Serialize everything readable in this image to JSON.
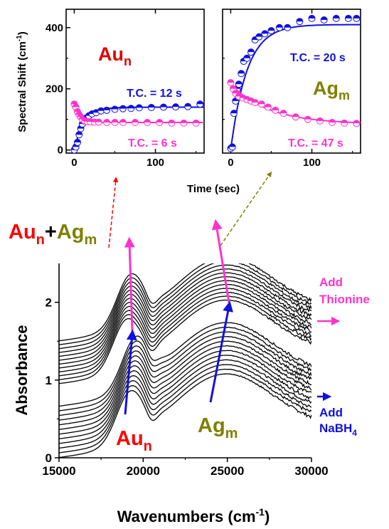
{
  "colors": {
    "gold": "#d8000f",
    "silver": "#808000",
    "blue": "#1010e0",
    "magenta": "#ff33cc",
    "curve": "#000000"
  },
  "chart_data": [
    {
      "type": "scatter",
      "panel": "inset-left",
      "ylabel": "Spectral Shift (cm-1)",
      "xlim": [
        -10,
        160
      ],
      "ylim": [
        -10,
        460
      ],
      "xticks": [
        "0",
        "100"
      ],
      "yticks": [
        "0",
        "200",
        "400"
      ],
      "series": [
        {
          "name": "Aun",
          "color": "blue",
          "label": "T.C. = 12 s",
          "tau": 12,
          "plateau": 140,
          "x": [
            0,
            2,
            4,
            6,
            8,
            10,
            12,
            15,
            18,
            22,
            27,
            33,
            40,
            50,
            60,
            70,
            80,
            95,
            110,
            125,
            140,
            155
          ],
          "y": [
            0,
            10,
            25,
            50,
            70,
            85,
            95,
            105,
            112,
            118,
            122,
            128,
            130,
            133,
            135,
            136,
            138,
            139,
            140,
            141,
            142,
            150
          ]
        },
        {
          "name": "Aun",
          "color": "magenta",
          "label": "T.C. = 6 s",
          "tau": 6,
          "start": 150,
          "plateau": 90,
          "x": [
            0,
            2,
            4,
            6,
            8,
            10,
            13,
            16,
            20,
            25,
            30,
            40,
            50,
            60,
            75,
            90,
            105,
            120,
            135,
            150
          ],
          "y": [
            150,
            140,
            125,
            115,
            108,
            100,
            95,
            93,
            92,
            91,
            91,
            90,
            90,
            90,
            90,
            90,
            90,
            88,
            88,
            88
          ]
        }
      ]
    },
    {
      "type": "scatter",
      "panel": "inset-right",
      "xlim": [
        -10,
        160
      ],
      "ylim": [
        -10,
        460
      ],
      "xticks": [
        "0",
        "100"
      ],
      "series": [
        {
          "name": "Agm",
          "color": "blue",
          "label": "T.C. = 20 s",
          "tau": 20,
          "plateau": 410,
          "x": [
            0,
            2,
            4,
            6,
            8,
            10,
            13,
            16,
            20,
            25,
            30,
            35,
            42,
            50,
            60,
            70,
            85,
            100,
            115,
            130,
            145,
            155
          ],
          "y": [
            5,
            10,
            120,
            160,
            200,
            215,
            250,
            290,
            300,
            320,
            360,
            370,
            380,
            390,
            400,
            400,
            420,
            430,
            425,
            430,
            430,
            430
          ]
        },
        {
          "name": "Agm",
          "color": "magenta",
          "label": "T.C. = 47 s",
          "tau": 47,
          "start": 215,
          "plateau": 85,
          "x": [
            0,
            3,
            6,
            10,
            15,
            20,
            25,
            30,
            38,
            46,
            55,
            65,
            80,
            95,
            110,
            125,
            140,
            155
          ],
          "y": [
            220,
            200,
            185,
            175,
            170,
            165,
            160,
            155,
            150,
            140,
            130,
            120,
            108,
            100,
            95,
            90,
            88,
            87
          ]
        }
      ]
    },
    {
      "type": "line",
      "panel": "main",
      "xlabel": "Wavenumbers (cm-1)",
      "ylabel": "Absorbance",
      "xlim": [
        15000,
        30000
      ],
      "ylim": [
        0,
        2.5
      ],
      "xticks": [
        "15000",
        "20000",
        "25000",
        "30000"
      ],
      "yticks": [
        "0",
        "1",
        "2"
      ],
      "groups": [
        {
          "name": "Add NaBH4",
          "curves": 12,
          "offsets": [
            0.0,
            0.06,
            0.12,
            0.18,
            0.24,
            0.3,
            0.36,
            0.42,
            0.48,
            0.54,
            0.6,
            0.66
          ]
        },
        {
          "name": "Add Thionine",
          "curves": 12,
          "offsets": [
            0.95,
            1.0,
            1.05,
            1.1,
            1.15,
            1.2,
            1.25,
            1.3,
            1.35,
            1.4,
            1.45,
            1.5
          ]
        }
      ]
    }
  ],
  "labels": {
    "inset_xlabel": "Time (sec)",
    "au_inset": "Au",
    "au_inset_sub": "n",
    "ag_inset": "Ag",
    "ag_inset_sub": "m",
    "tc_au_blue": "T.C. = 12 s",
    "tc_au_mag": "T.C. = 6 s",
    "tc_ag_blue": "T.C. = 20 s",
    "tc_ag_mag": "T.C. = 47 s",
    "combo_au": "Au",
    "combo_au_sub": "n",
    "combo_plus": "+",
    "combo_ag": "Ag",
    "combo_ag_sub": "m",
    "au_main": "Au",
    "au_main_sub": "n",
    "ag_main": "Ag",
    "ag_main_sub": "m",
    "add_thionine_1": "Add",
    "add_thionine_2": "Thionine",
    "add_nabh4_1": "Add",
    "add_nabh4_2": "NaBH",
    "add_nabh4_sub": "4",
    "main_ylabel": "Absorbance",
    "main_xlabel": "Wavenumbers (cm",
    "main_xlabel_sup": "-1",
    "main_xlabel_end": ")",
    "inset_ylabel": "Spectral Shift (cm",
    "inset_ylabel_sup": "-1",
    "inset_ylabel_end": ")"
  }
}
